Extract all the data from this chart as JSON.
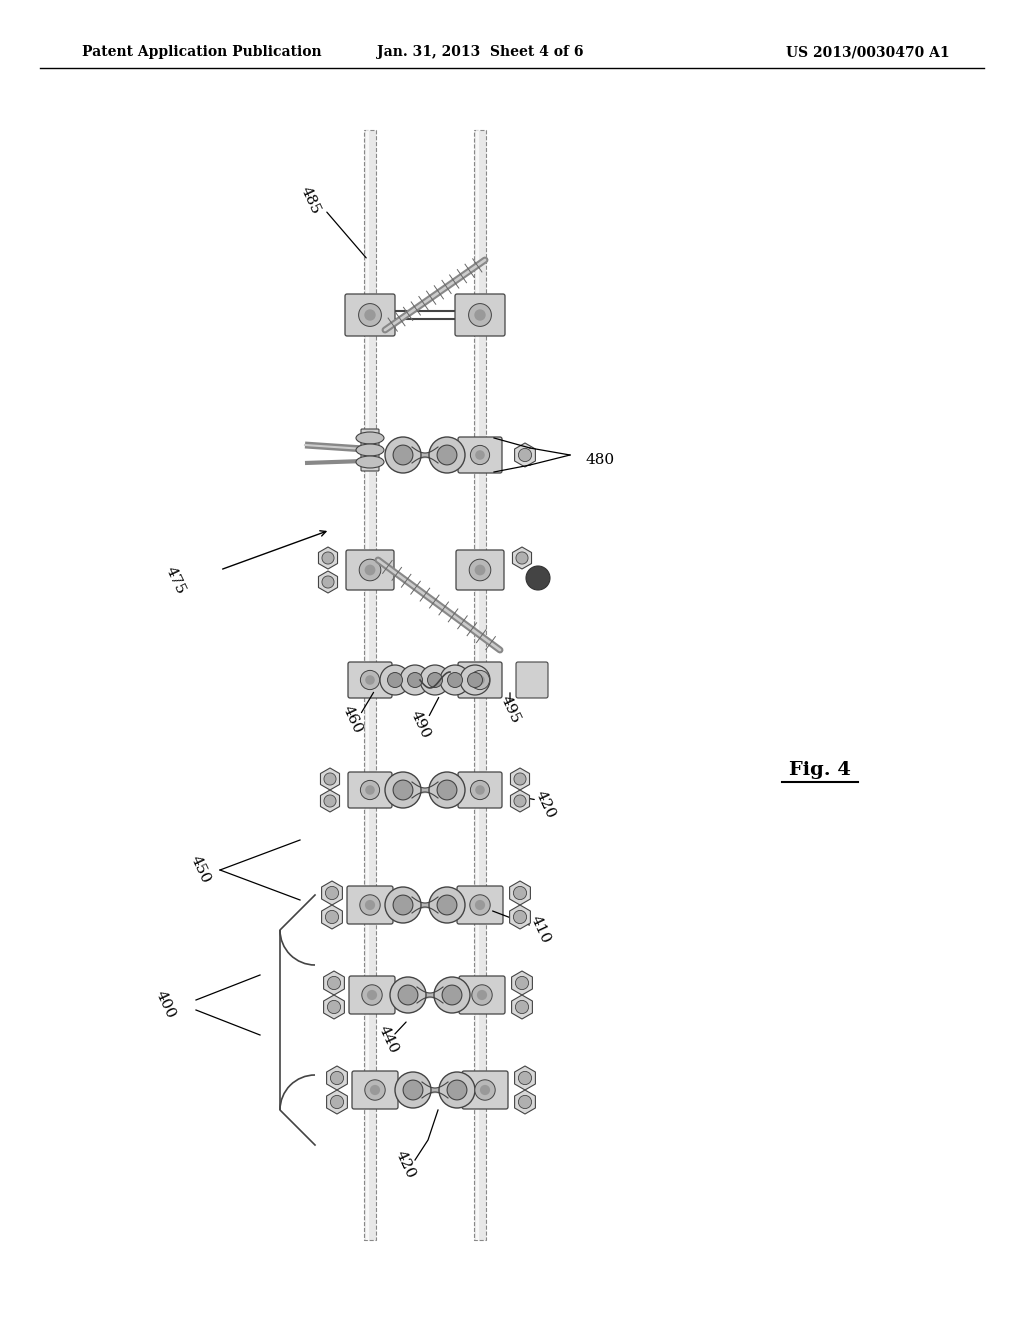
{
  "background_color": "#ffffff",
  "header_left": "Patent Application Publication",
  "header_center": "Jan. 31, 2013  Sheet 4 of 6",
  "header_right": "US 2013/0030470 A1",
  "figure_label": "Fig. 4",
  "line_color": "#444444",
  "light_gray": "#cccccc",
  "med_gray": "#999999",
  "dark_gray": "#555555",
  "rod_color": "#bbbbbb",
  "screw_color": "#888888"
}
